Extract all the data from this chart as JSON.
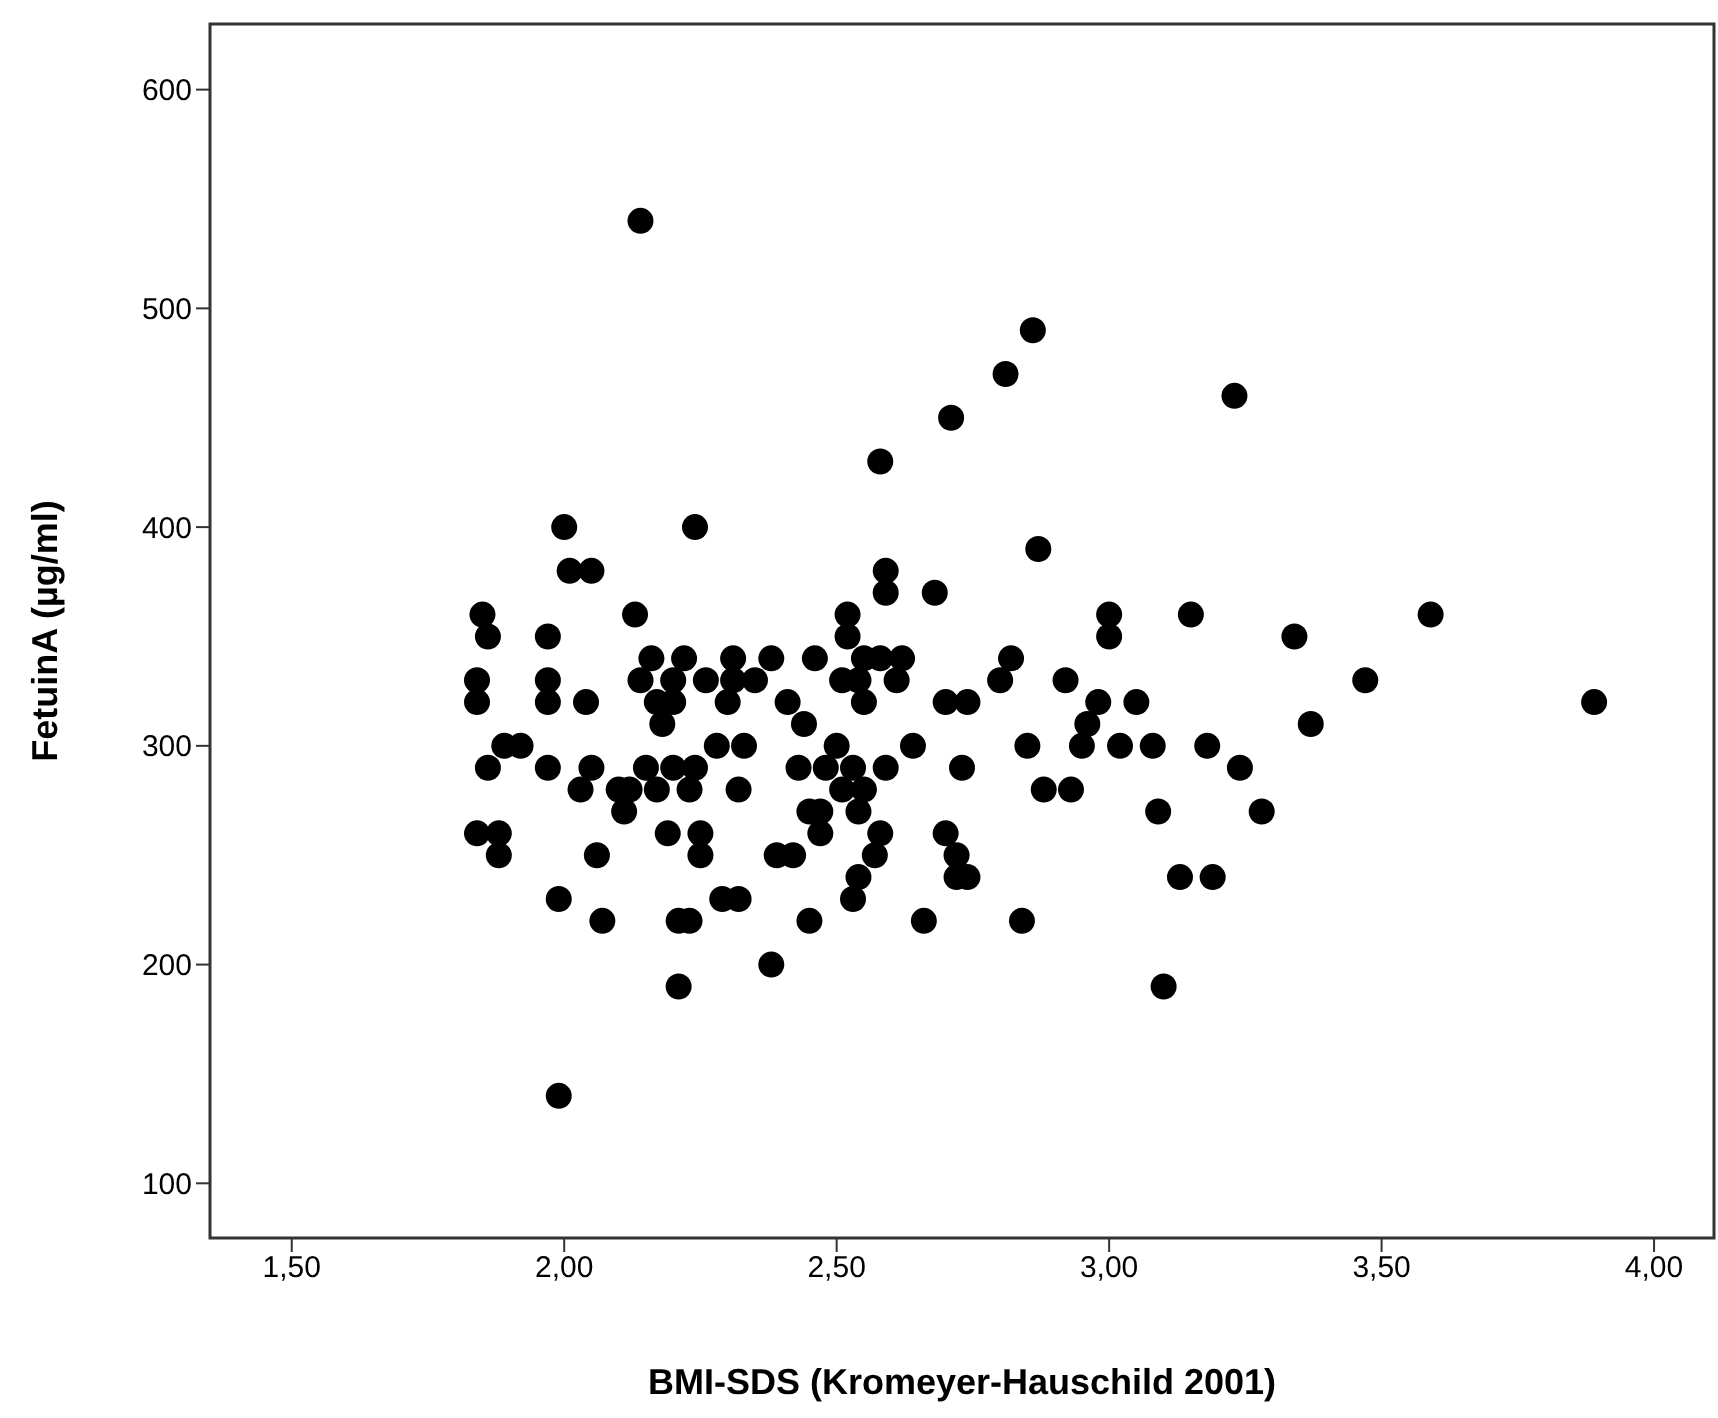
{
  "chart_data": {
    "type": "scatter",
    "xlabel": "BMI-SDS  (Kromeyer-Hauschild 2001)",
    "ylabel": "FetuinA (µg/ml)",
    "marker": "circle",
    "grid": false,
    "xlim": [
      1.35,
      4.11
    ],
    "ylim": [
      75,
      630
    ],
    "xticks": [
      {
        "value": 1.5,
        "label": "1,50"
      },
      {
        "value": 2,
        "label": "2,00"
      },
      {
        "value": 2.5,
        "label": "2,50"
      },
      {
        "value": 3,
        "label": "3,00"
      },
      {
        "value": 3.5,
        "label": "3,50"
      },
      {
        "value": 4,
        "label": "4,00"
      }
    ],
    "yticks": [
      100,
      200,
      300,
      400,
      500,
      600
    ],
    "series": [
      {
        "color": "#000000",
        "x": [
          1.84,
          1.84,
          1.85,
          1.86,
          1.84,
          1.86,
          1.88,
          1.88,
          1.89,
          1.92,
          1.97,
          1.97,
          1.97,
          1.97,
          1.99,
          1.99,
          2.0,
          2.01,
          2.03,
          2.04,
          2.05,
          2.05,
          2.06,
          2.07,
          2.1,
          2.11,
          2.12,
          2.13,
          2.14,
          2.14,
          2.15,
          2.16,
          2.17,
          2.17,
          2.18,
          2.19,
          2.2,
          2.2,
          2.2,
          2.21,
          2.21,
          2.22,
          2.23,
          2.23,
          2.24,
          2.24,
          2.25,
          2.25,
          2.26,
          2.28,
          2.29,
          2.3,
          2.31,
          2.31,
          2.32,
          2.32,
          2.33,
          2.35,
          2.38,
          2.38,
          2.39,
          2.41,
          2.42,
          2.43,
          2.44,
          2.45,
          2.45,
          2.46,
          2.47,
          2.47,
          2.48,
          2.5,
          2.51,
          2.51,
          2.52,
          2.52,
          2.53,
          2.53,
          2.54,
          2.54,
          2.54,
          2.55,
          2.55,
          2.55,
          2.57,
          2.58,
          2.58,
          2.58,
          2.59,
          2.59,
          2.59,
          2.61,
          2.62,
          2.64,
          2.66,
          2.68,
          2.7,
          2.7,
          2.71,
          2.72,
          2.72,
          2.73,
          2.74,
          2.74,
          2.8,
          2.81,
          2.82,
          2.84,
          2.85,
          2.86,
          2.87,
          2.88,
          2.92,
          2.93,
          2.95,
          2.96,
          2.98,
          3.0,
          3.0,
          3.02,
          3.05,
          3.08,
          3.09,
          3.1,
          3.13,
          3.15,
          3.18,
          3.19,
          3.23,
          3.24,
          3.28,
          3.34,
          3.37,
          3.47,
          3.59,
          3.89
        ],
        "values": [
          330,
          320,
          360,
          350,
          260,
          290,
          260,
          250,
          300,
          300,
          350,
          330,
          320,
          290,
          230,
          140,
          400,
          380,
          280,
          320,
          290,
          380,
          250,
          220,
          280,
          270,
          280,
          360,
          540,
          330,
          290,
          340,
          320,
          280,
          310,
          260,
          290,
          330,
          320,
          190,
          220,
          340,
          280,
          220,
          400,
          290,
          260,
          250,
          330,
          300,
          230,
          320,
          340,
          330,
          280,
          230,
          300,
          330,
          200,
          340,
          250,
          320,
          250,
          290,
          310,
          270,
          220,
          340,
          270,
          260,
          290,
          300,
          330,
          280,
          360,
          350,
          290,
          230,
          240,
          330,
          270,
          340,
          320,
          280,
          250,
          430,
          260,
          340,
          380,
          370,
          290,
          330,
          340,
          300,
          220,
          370,
          320,
          260,
          450,
          250,
          240,
          290,
          320,
          240,
          330,
          470,
          340,
          220,
          300,
          490,
          390,
          280,
          330,
          280,
          300,
          310,
          320,
          360,
          350,
          300,
          320,
          300,
          270,
          190,
          240,
          360,
          300,
          240,
          460,
          290,
          270,
          350,
          310,
          330,
          360,
          320
        ]
      }
    ]
  }
}
